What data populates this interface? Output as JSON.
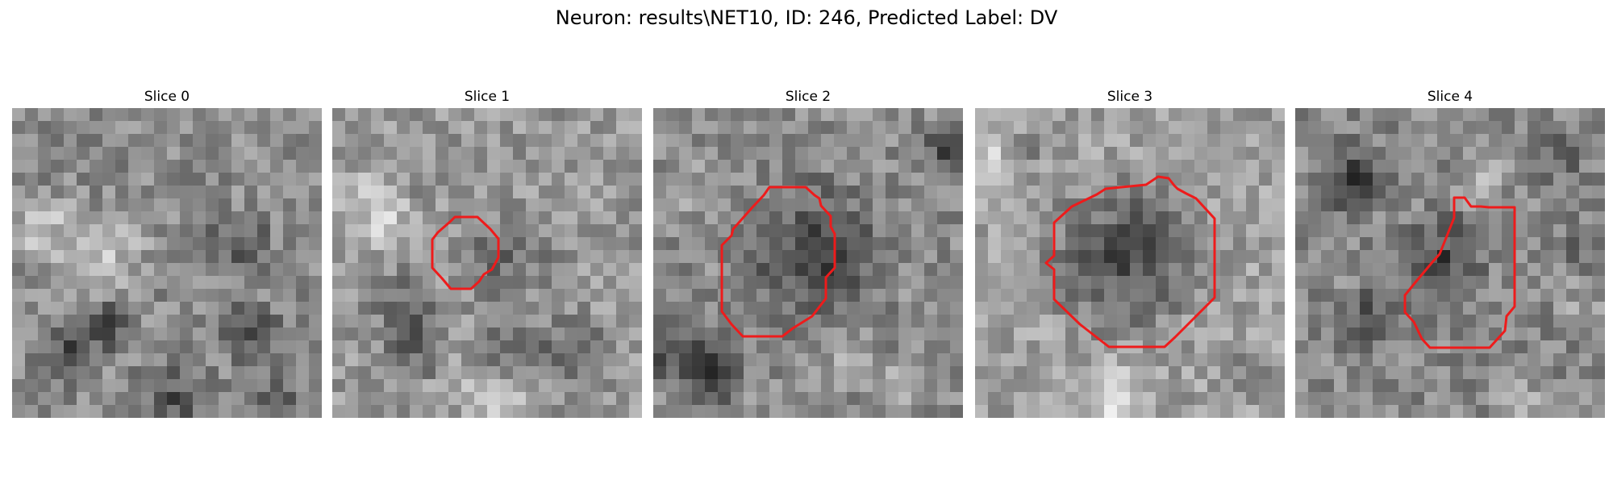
{
  "figure": {
    "title": "Neuron: results\\NET10, ID: 246, Predicted Label: DV",
    "predicted_label": "DV",
    "contour_color": "#ee1b1b",
    "colormap": "gray"
  },
  "panels": [
    {
      "title": "Slice 0",
      "has_contour": false
    },
    {
      "title": "Slice 1",
      "has_contour": true
    },
    {
      "title": "Slice 2",
      "has_contour": true
    },
    {
      "title": "Slice 3",
      "has_contour": true
    },
    {
      "title": "Slice 4",
      "has_contour": true
    }
  ]
}
